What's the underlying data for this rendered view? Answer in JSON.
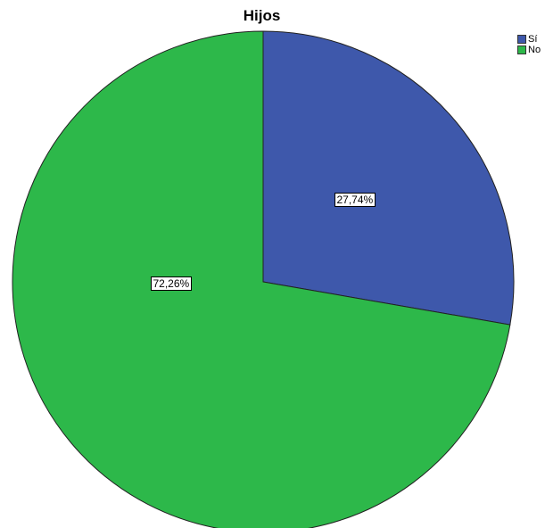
{
  "chart_data": {
    "type": "pie",
    "title": "Hijos",
    "categories": [
      "Sí",
      "No"
    ],
    "values": [
      27.74,
      72.26
    ],
    "data_labels": [
      "27,74%",
      "72,26%"
    ],
    "colors": [
      "#3e58ab",
      "#2db84a"
    ],
    "legend_position": "top-right",
    "start_angle": "12 o'clock",
    "direction": "clockwise"
  }
}
